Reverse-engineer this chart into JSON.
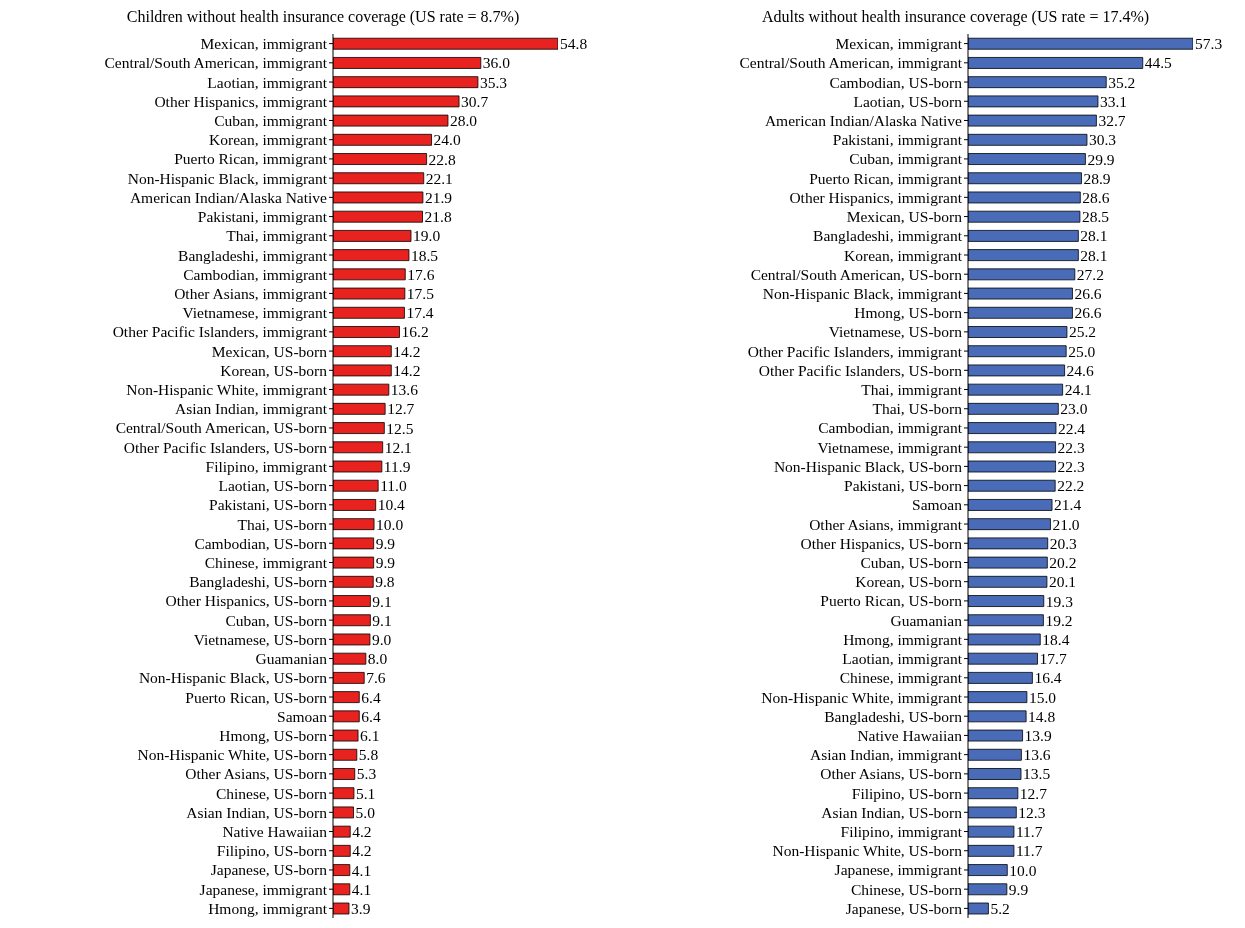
{
  "chart_data": [
    {
      "type": "bar",
      "orientation": "horizontal",
      "title": "Children without health insurance coverage (US rate = 8.7%)",
      "color": "#e8231f",
      "categories": [
        "Mexican, immigrant",
        "Central/South American, immigrant",
        "Laotian, immigrant",
        "Other Hispanics, immigrant",
        "Cuban, immigrant",
        "Korean, immigrant",
        "Puerto Rican, immigrant",
        "Non-Hispanic Black, immigrant",
        "American Indian/Alaska Native",
        "Pakistani, immigrant",
        "Thai, immigrant",
        "Bangladeshi, immigrant",
        "Cambodian, immigrant",
        "Other Asians, immigrant",
        "Vietnamese, immigrant",
        "Other Pacific Islanders, immigrant",
        "Mexican, US-born",
        "Korean, US-born",
        "Non-Hispanic White, immigrant",
        "Asian Indian, immigrant",
        "Central/South American, US-born",
        "Other Pacific Islanders, US-born",
        "Filipino, immigrant",
        "Laotian, US-born",
        "Pakistani, US-born",
        "Thai, US-born",
        "Cambodian, US-born",
        "Chinese, immigrant",
        "Bangladeshi, US-born",
        "Other Hispanics, US-born",
        "Cuban, US-born",
        "Vietnamese, US-born",
        "Guamanian",
        "Non-Hispanic Black, US-born",
        "Puerto Rican, US-born",
        "Samoan",
        "Hmong, US-born",
        "Non-Hispanic White, US-born",
        "Other Asians, US-born",
        "Chinese, US-born",
        "Asian Indian, US-born",
        "Native Hawaiian",
        "Filipino, US-born",
        "Japanese, US-born",
        "Japanese, immigrant",
        "Hmong, immigrant"
      ],
      "values": [
        54.8,
        36.0,
        35.3,
        30.7,
        28.0,
        24.0,
        22.8,
        22.1,
        21.9,
        21.8,
        19.0,
        18.5,
        17.6,
        17.5,
        17.4,
        16.2,
        14.2,
        14.2,
        13.6,
        12.7,
        12.5,
        12.1,
        11.9,
        11.0,
        10.4,
        10.0,
        9.9,
        9.9,
        9.8,
        9.1,
        9.1,
        9.0,
        8.0,
        7.6,
        6.4,
        6.4,
        6.1,
        5.8,
        5.3,
        5.1,
        5.0,
        4.2,
        4.2,
        4.1,
        4.1,
        3.9
      ],
      "value_labels": [
        "54.8",
        "36.0",
        "35.3",
        "30.7",
        "28.0",
        "24.0",
        "22.8",
        "22.1",
        "21.9",
        "21.8",
        "19.0",
        "18.5",
        "17.6",
        "17.5",
        "17.4",
        "16.2",
        "14.2",
        "14.2",
        "13.6",
        "12.7",
        "12.5",
        "12.1",
        "11.9",
        "11.0",
        "10.4",
        "10.0",
        "9.9",
        "9.9",
        "9.8",
        "9.1",
        "9.1",
        "9.0",
        "8.0",
        "7.6",
        "6.4",
        "6.4",
        "6.1",
        "5.8",
        "5.3",
        "5.1",
        "5.0",
        "4.2",
        "4.2",
        "4.1",
        "4.1",
        "3.9"
      ]
    },
    {
      "type": "bar",
      "orientation": "horizontal",
      "title": "Adults without health insurance coverage (US rate = 17.4%)",
      "color": "#4a6cb8",
      "categories": [
        "Mexican, immigrant",
        "Central/South American, immigrant",
        "Cambodian, US-born",
        "Laotian, US-born",
        "American Indian/Alaska Native",
        "Pakistani, immigrant",
        "Cuban, immigrant",
        "Puerto Rican, immigrant",
        "Other Hispanics, immigrant",
        "Mexican, US-born",
        "Bangladeshi, immigrant",
        "Korean, immigrant",
        "Central/South American, US-born",
        "Non-Hispanic Black, immigrant",
        "Hmong, US-born",
        "Vietnamese, US-born",
        "Other Pacific Islanders, immigrant",
        "Other Pacific Islanders, US-born",
        "Thai, immigrant",
        "Thai, US-born",
        "Cambodian, immigrant",
        "Vietnamese, immigrant",
        "Non-Hispanic Black, US-born",
        "Pakistani, US-born",
        "Samoan",
        "Other Asians, immigrant",
        "Other Hispanics, US-born",
        "Cuban, US-born",
        "Korean, US-born",
        "Puerto Rican, US-born",
        "Guamanian",
        "Hmong, immigrant",
        "Laotian, immigrant",
        "Chinese, immigrant",
        "Non-Hispanic White, immigrant",
        "Bangladeshi, US-born",
        "Native Hawaiian",
        "Asian Indian, immigrant",
        "Other Asians, US-born",
        "Filipino, US-born",
        "Asian Indian, US-born",
        "Filipino, immigrant",
        "Non-Hispanic White, US-born",
        "Japanese, immigrant",
        "Chinese, US-born",
        "Japanese, US-born"
      ],
      "values": [
        57.3,
        44.5,
        35.2,
        33.1,
        32.7,
        30.3,
        29.9,
        28.9,
        28.6,
        28.5,
        28.1,
        28.1,
        27.2,
        26.6,
        26.6,
        25.2,
        25.0,
        24.6,
        24.1,
        23.0,
        22.4,
        22.3,
        22.3,
        22.2,
        21.4,
        21.0,
        20.3,
        20.2,
        20.1,
        19.3,
        19.2,
        18.4,
        17.7,
        16.4,
        15.0,
        14.8,
        13.9,
        13.6,
        13.5,
        12.7,
        12.3,
        11.7,
        11.7,
        10.0,
        9.9,
        5.2
      ],
      "value_labels": [
        "57.3",
        "44.5",
        "35.2",
        "33.1",
        "32.7",
        "30.3",
        "29.9",
        "28.9",
        "28.6",
        "28.5",
        "28.1",
        "28.1",
        "27.2",
        "26.6",
        "26.6",
        "25.2",
        "25.0",
        "24.6",
        "24.1",
        "23.0",
        "22.4",
        "22.3",
        "22.3",
        "22.2",
        "21.4",
        "21.0",
        "20.3",
        "20.2",
        "20.1",
        "19.3",
        "19.2",
        "18.4",
        "17.7",
        "16.4",
        "15.0",
        "14.8",
        "13.9",
        "13.6",
        "13.5",
        "12.7",
        "12.3",
        "11.7",
        "11.7",
        "10.0",
        "9.9",
        "5.2"
      ]
    }
  ]
}
